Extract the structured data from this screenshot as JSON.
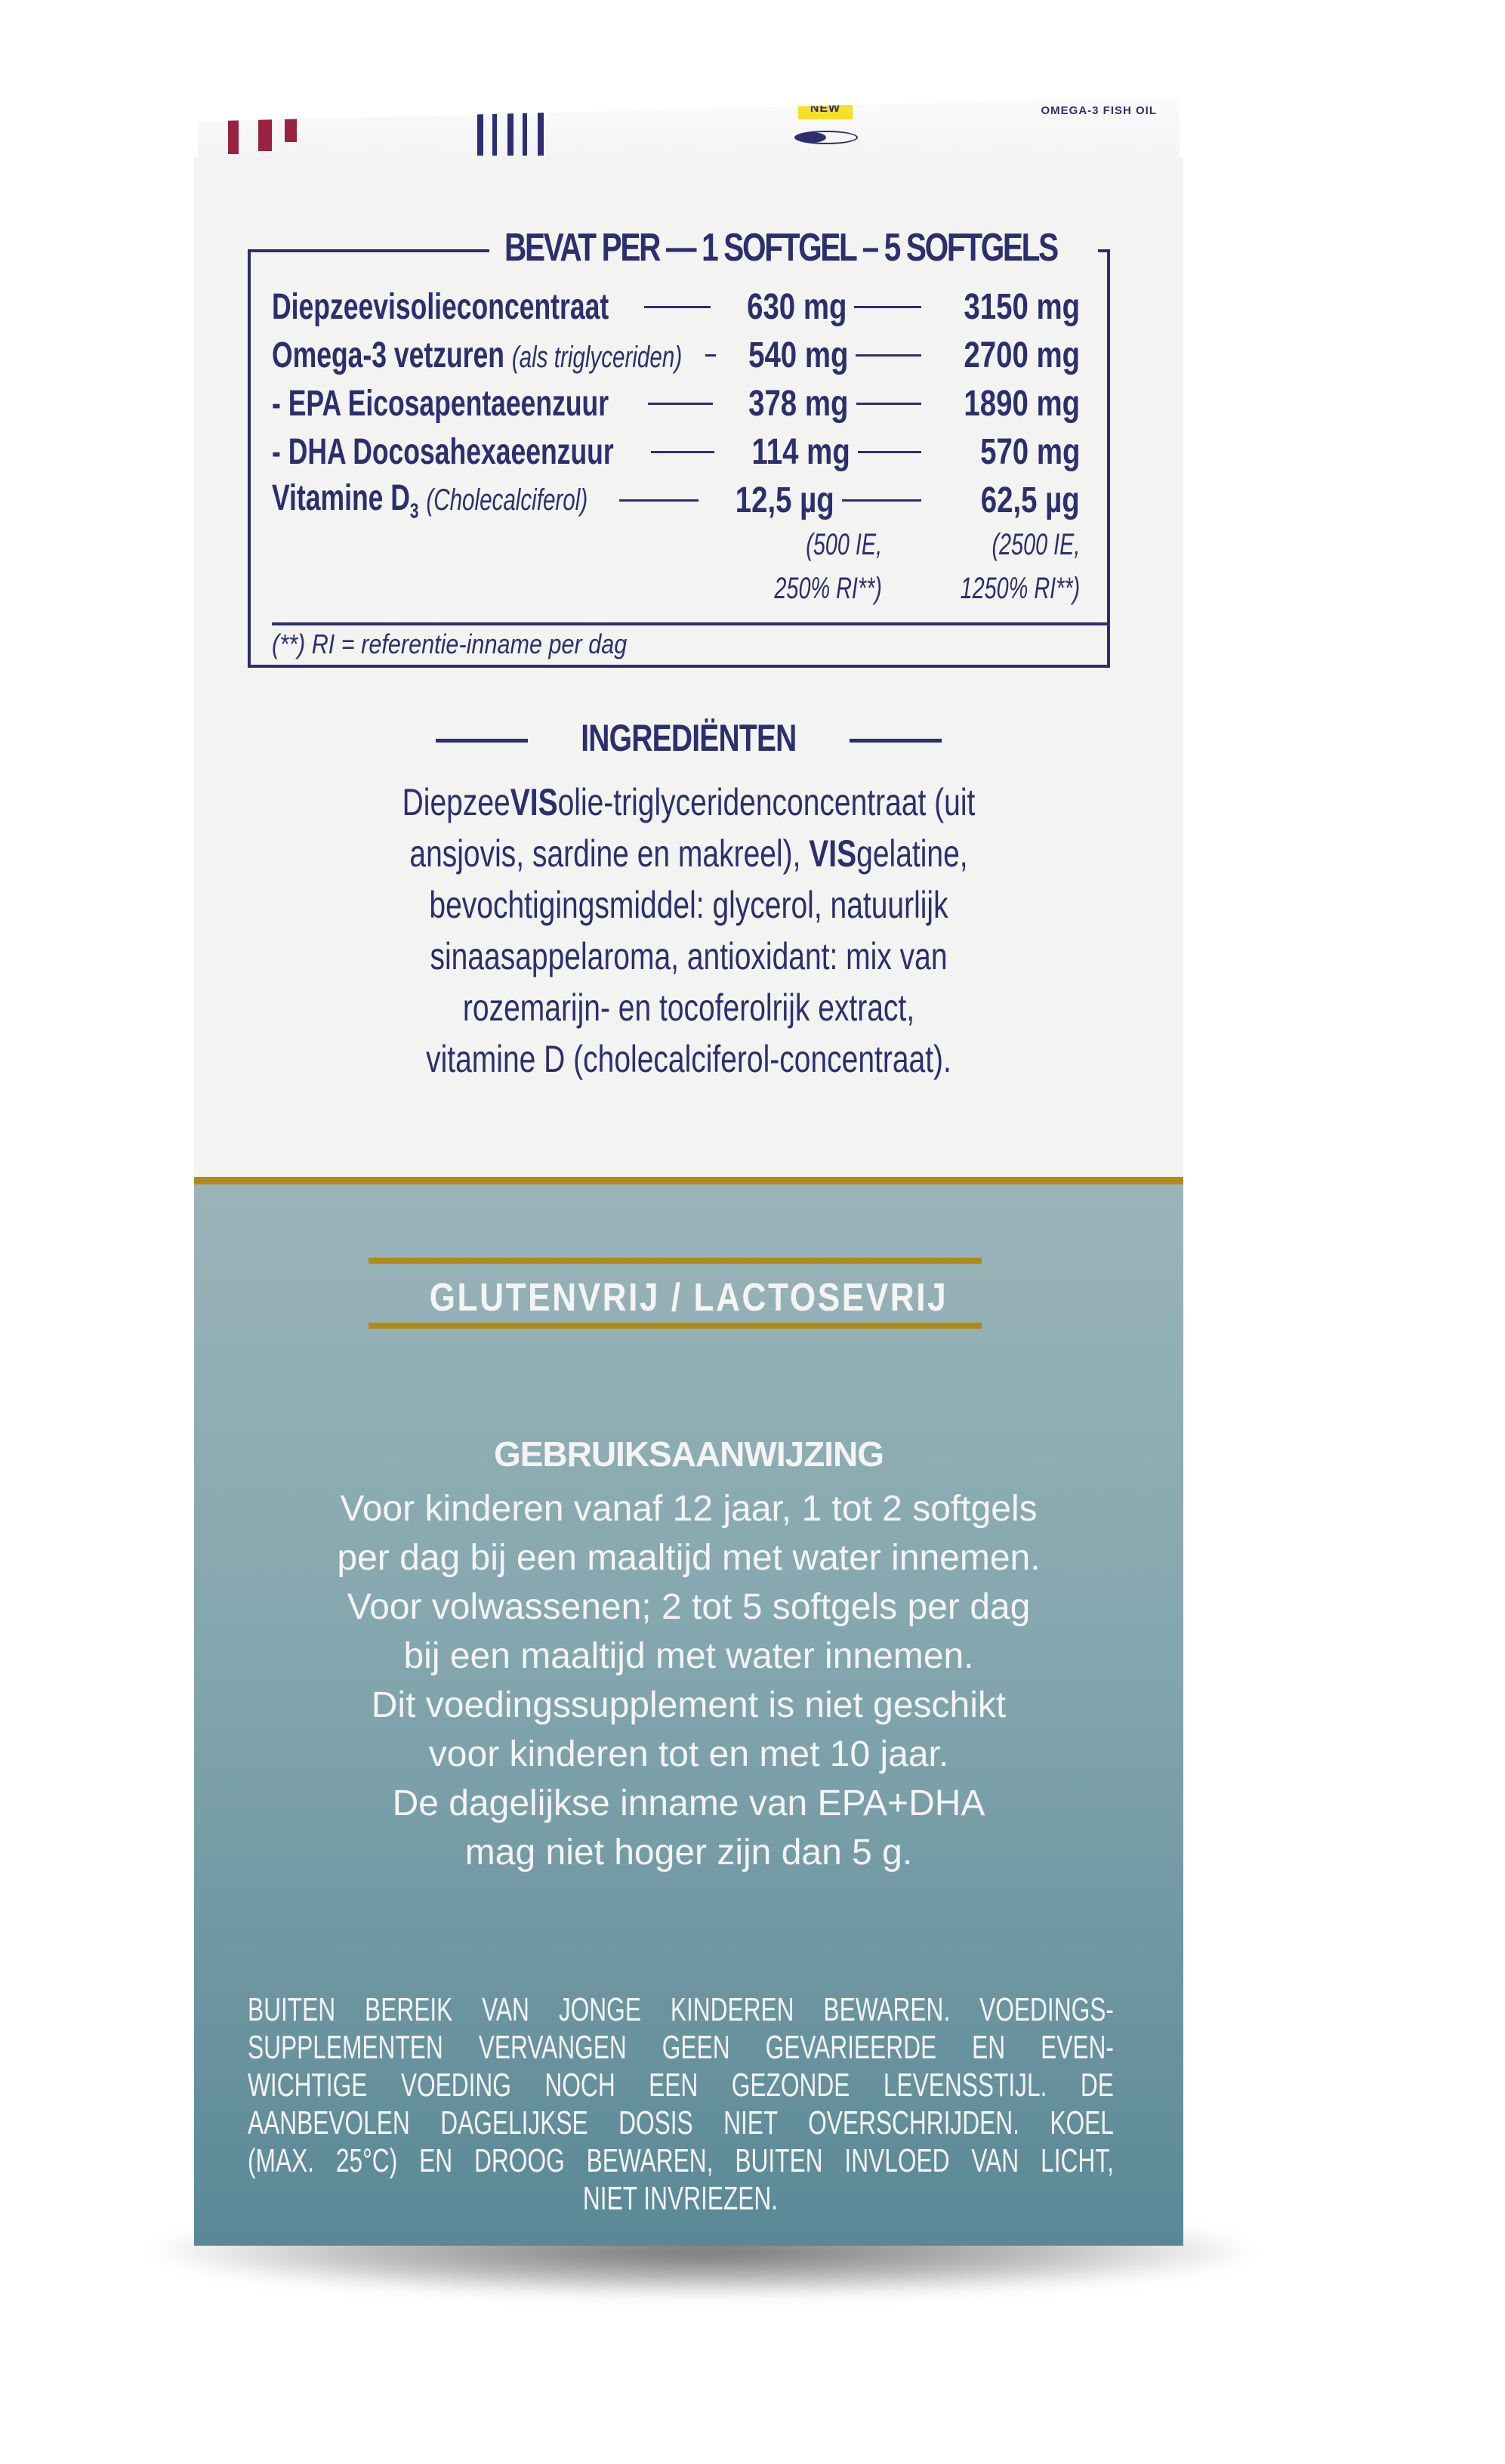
{
  "packaging_top": {
    "badge": "NEW",
    "side_title": "OMEGA-3 FISH OIL"
  },
  "nutrition_table": {
    "header": "BEVAT PER — 1 SOFTGEL – 5 SOFTGELS",
    "rows": [
      {
        "label": "Diepzeevisolieconcentraat",
        "sub": "",
        "per_1": "630 mg",
        "per_5": "3150 mg"
      },
      {
        "label": "Omega-3 vetzuren",
        "sub": "(als triglyceriden)",
        "per_1": "540 mg",
        "per_5": "2700 mg"
      },
      {
        "label": "- EPA Eicosapentaeenzuur",
        "sub": "",
        "per_1": "378 mg",
        "per_5": "1890 mg"
      },
      {
        "label": "- DHA Docosahexaeenzuur",
        "sub": "",
        "per_1": "114 mg",
        "per_5": "570 mg"
      },
      {
        "label": "Vitamine D",
        "subscript": "3",
        "sub": "(Cholecalciferol)",
        "per_1": "12,5 µg",
        "per_5": "62,5 µg"
      }
    ],
    "vitd_note_1": [
      "(500 IE,",
      "250% RI**)"
    ],
    "vitd_note_5": [
      "(2500 IE,",
      "1250% RI**)"
    ],
    "footnote": "(**) RI = referentie-inname per dag"
  },
  "ingredients": {
    "title": "INGREDIËNTEN",
    "lines": [
      [
        "Diepzee",
        "VIS",
        "olie-triglyceridenconcentraat (uit"
      ],
      [
        "ansjovis, sardine en makreel), ",
        "VIS",
        "gelatine,"
      ],
      [
        "bevochtigingsmiddel: glycerol, natuurlijk",
        "",
        ""
      ],
      [
        "sinaasappelaroma, antioxidant: mix van",
        "",
        ""
      ],
      [
        "rozemarijn- en tocoferolrijk extract,",
        "",
        ""
      ],
      [
        "vitamine D (cholecalciferol-concentraat).",
        "",
        ""
      ]
    ]
  },
  "claims": {
    "label": "GLUTENVRIJ / LACTOSEVRIJ"
  },
  "usage": {
    "title": "GEBRUIKSAANWIJZING",
    "lines": [
      "Voor kinderen vanaf 12 jaar, 1 tot 2 softgels",
      "per dag bij een maaltijd met water innemen.",
      "Voor volwassenen; 2 tot 5 softgels per dag",
      "bij een maaltijd met water innemen.",
      "Dit voedingssupplement is niet geschikt",
      "voor kinderen tot en met 10 jaar.",
      "De dagelijkse inname van EPA+DHA",
      "mag niet hoger zijn dan 5 g."
    ]
  },
  "warning": {
    "lines": [
      "BUITEN BEREIK VAN JONGE KINDEREN BEWAREN. VOEDINGS-",
      "SUPPLEMENTEN VERVANGEN GEEN GEVARIEERDE EN EVEN-",
      "WICHTIGE VOEDING NOCH EEN GEZONDE LEVENSSTIJL. DE",
      "AANBEVOLEN DAGELIJKSE DOSIS NIET OVERSCHRIJDEN. KOEL",
      "(MAX. 25°C) EN DROOG BEWAREN, BUITEN INVLOED VAN LICHT,",
      "NIET INVRIEZEN."
    ]
  },
  "colors": {
    "navy": "#2b2f6e",
    "gold": "#b08a17",
    "teal_top": "#9ab4b9",
    "teal_bottom": "#5a8896",
    "panel": "#f3f3f2",
    "badge_yellow": "#f2e02a",
    "maroon": "#9a2240"
  }
}
